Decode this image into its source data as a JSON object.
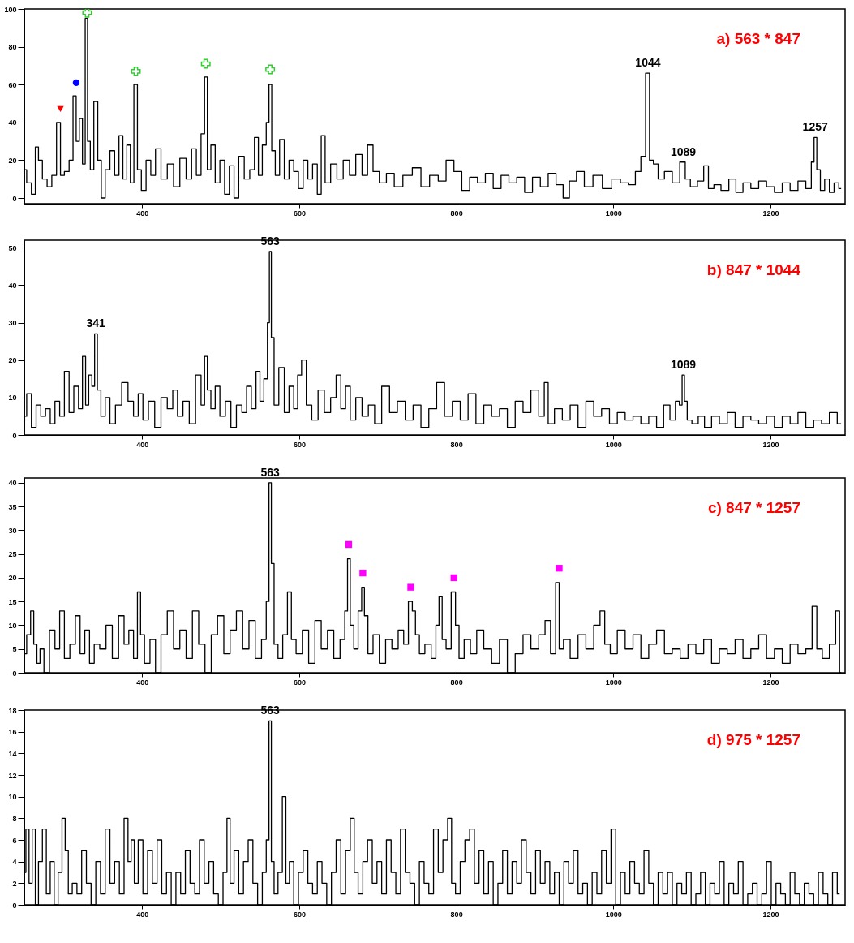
{
  "chart_data": [
    {
      "type": "step",
      "title": "a) 563 * 847",
      "xlim": [
        250,
        1295
      ],
      "xticks": [
        400,
        600,
        800,
        1000,
        1200
      ],
      "ylim": [
        -3,
        100
      ],
      "yticks": [
        0,
        20,
        40,
        60,
        80,
        100
      ],
      "grid": false,
      "annotations": [
        {
          "text": "1044",
          "x": 1044,
          "y": 66
        },
        {
          "text": "1089",
          "x": 1089,
          "y": 19
        },
        {
          "text": "1257",
          "x": 1257,
          "y": 32
        }
      ],
      "series": [
        {
          "color": "#000000",
          "x": [
            250,
            256,
            262,
            266,
            270,
            276,
            282,
            288,
            294,
            298,
            304,
            310,
            314,
            318,
            322,
            326,
            329,
            332,
            336,
            341,
            346,
            350,
            356,
            362,
            368,
            373,
            378,
            383,
            387,
            392,
            396,
            402,
            408,
            414,
            420,
            428,
            436,
            444,
            452,
            460,
            466,
            472,
            478,
            481,
            485,
            490,
            496,
            502,
            508,
            514,
            520,
            526,
            534,
            540,
            546,
            550,
            556,
            560,
            563,
            567,
            572,
            578,
            584,
            590,
            596,
            602,
            608,
            614,
            620,
            626,
            630,
            636,
            644,
            652,
            660,
            668,
            676,
            684,
            690,
            698,
            706,
            716,
            726,
            738,
            750,
            760,
            772,
            782,
            792,
            802,
            812,
            822,
            832,
            842,
            852,
            862,
            872,
            882,
            892,
            902,
            912,
            922,
            932,
            940,
            948,
            958,
            968,
            980,
            992,
            1004,
            1014,
            1024,
            1032,
            1038,
            1044,
            1048,
            1054,
            1060,
            1070,
            1080,
            1089,
            1094,
            1102,
            1112,
            1118,
            1124,
            1132,
            1142,
            1152,
            1160,
            1170,
            1180,
            1190,
            1200,
            1210,
            1220,
            1230,
            1240,
            1250,
            1254,
            1257,
            1261,
            1266,
            1272,
            1278,
            1284,
            1290
          ],
          "values": [
            15,
            8,
            2,
            27,
            20,
            10,
            6,
            12,
            40,
            12,
            14,
            20,
            54,
            30,
            42,
            18,
            95,
            30,
            15,
            51,
            20,
            0,
            15,
            25,
            12,
            33,
            10,
            28,
            8,
            60,
            15,
            4,
            20,
            12,
            26,
            10,
            18,
            6,
            21,
            10,
            26,
            12,
            34,
            64,
            15,
            28,
            8,
            20,
            2,
            17,
            0,
            22,
            10,
            15,
            32,
            12,
            28,
            40,
            60,
            25,
            12,
            31,
            10,
            20,
            14,
            5,
            20,
            10,
            18,
            2,
            33,
            8,
            18,
            10,
            20,
            12,
            23,
            12,
            28,
            14,
            8,
            13,
            6,
            12,
            16,
            6,
            12,
            9,
            20,
            14,
            4,
            11,
            8,
            13,
            5,
            12,
            8,
            11,
            3,
            11,
            6,
            13,
            7,
            0,
            9,
            14,
            6,
            12,
            5,
            10,
            8,
            7,
            14,
            22,
            66,
            20,
            18,
            10,
            14,
            8,
            19,
            10,
            6,
            9,
            17,
            5,
            7,
            4,
            10,
            3,
            8,
            5,
            9,
            6,
            3,
            8,
            4,
            9,
            5,
            19,
            32,
            15,
            4,
            10,
            3,
            8,
            5
          ]
        },
        {
          "type": "scatter",
          "color": "#ff0000",
          "marker": "triangle",
          "x": [
            296
          ],
          "values": [
            47
          ]
        },
        {
          "type": "scatter",
          "color": "#0000ff",
          "marker": "circle",
          "x": [
            316
          ],
          "values": [
            61
          ]
        },
        {
          "type": "scatter",
          "color": "#33cc33",
          "marker": "cross",
          "x": [
            330,
            392,
            481,
            563
          ],
          "values": [
            98,
            67,
            71,
            68
          ]
        }
      ]
    },
    {
      "type": "step",
      "title": "b) 847 * 1044",
      "xlim": [
        250,
        1295
      ],
      "xticks": [
        400,
        600,
        800,
        1000,
        1200
      ],
      "ylim": [
        0,
        52
      ],
      "yticks": [
        0,
        10,
        20,
        30,
        40,
        50
      ],
      "grid": false,
      "annotations": [
        {
          "text": "341",
          "x": 341,
          "y": 27
        },
        {
          "text": "563",
          "x": 563,
          "y": 49
        },
        {
          "text": "1089",
          "x": 1089,
          "y": 16
        }
      ],
      "series": [
        {
          "color": "#000000",
          "x": [
            250,
            256,
            262,
            268,
            274,
            280,
            286,
            292,
            298,
            304,
            310,
            316,
            322,
            326,
            330,
            334,
            338,
            341,
            345,
            350,
            356,
            362,
            370,
            378,
            386,
            392,
            398,
            404,
            412,
            420,
            428,
            436,
            442,
            448,
            456,
            464,
            472,
            478,
            481,
            485,
            490,
            496,
            502,
            510,
            516,
            524,
            530,
            536,
            542,
            548,
            552,
            558,
            561,
            563,
            566,
            570,
            578,
            584,
            590,
            596,
            600,
            606,
            612,
            620,
            628,
            636,
            644,
            650,
            656,
            662,
            668,
            676,
            684,
            692,
            700,
            710,
            720,
            730,
            740,
            750,
            760,
            770,
            780,
            790,
            800,
            810,
            820,
            830,
            840,
            850,
            860,
            870,
            880,
            890,
            900,
            910,
            914,
            920,
            930,
            940,
            950,
            960,
            970,
            980,
            990,
            1000,
            1010,
            1020,
            1030,
            1040,
            1050,
            1060,
            1068,
            1076,
            1082,
            1086,
            1089,
            1092,
            1096,
            1104,
            1112,
            1120,
            1130,
            1140,
            1150,
            1160,
            1170,
            1180,
            1190,
            1200,
            1210,
            1220,
            1230,
            1240,
            1250,
            1260,
            1270,
            1280,
            1290
          ],
          "values": [
            5,
            11,
            2,
            8,
            5,
            7,
            3,
            9,
            5,
            17,
            6,
            13,
            7,
            21,
            8,
            16,
            13,
            27,
            12,
            5,
            10,
            3,
            8,
            14,
            9,
            5,
            11,
            4,
            9,
            2,
            10,
            7,
            12,
            5,
            9,
            3,
            16,
            8,
            21,
            12,
            7,
            13,
            5,
            9,
            2,
            8,
            6,
            13,
            7,
            17,
            9,
            15,
            30,
            49,
            26,
            8,
            18,
            6,
            13,
            7,
            16,
            20,
            8,
            4,
            12,
            6,
            10,
            16,
            7,
            13,
            4,
            10,
            5,
            8,
            3,
            13,
            6,
            9,
            4,
            8,
            2,
            7,
            14,
            5,
            9,
            4,
            11,
            3,
            8,
            5,
            7,
            2,
            9,
            6,
            12,
            5,
            14,
            3,
            7,
            4,
            8,
            2,
            9,
            5,
            7,
            3,
            6,
            4,
            5,
            3,
            5,
            2,
            8,
            4,
            9,
            8,
            16,
            9,
            4,
            3,
            5,
            2,
            5,
            3,
            6,
            2,
            5,
            4,
            3,
            5,
            2,
            5,
            3,
            6,
            2,
            4,
            3,
            6,
            3
          ]
        }
      ]
    },
    {
      "type": "step",
      "title": "c) 847 * 1257",
      "xlim": [
        250,
        1295
      ],
      "xticks": [
        400,
        600,
        800,
        1000,
        1200
      ],
      "ylim": [
        0,
        41
      ],
      "yticks": [
        0,
        5,
        10,
        15,
        20,
        25,
        30,
        35,
        40
      ],
      "grid": false,
      "annotations": [
        {
          "text": "563",
          "x": 563,
          "y": 40
        }
      ],
      "series": [
        {
          "color": "#000000",
          "x": [
            250,
            256,
            260,
            264,
            268,
            272,
            278,
            286,
            292,
            298,
            304,
            312,
            318,
            324,
            330,
            336,
            342,
            350,
            358,
            366,
            374,
            380,
            386,
            392,
            396,
            400,
            406,
            414,
            420,
            428,
            436,
            444,
            452,
            460,
            468,
            476,
            484,
            492,
            500,
            508,
            516,
            524,
            532,
            540,
            548,
            556,
            560,
            563,
            566,
            570,
            576,
            582,
            588,
            592,
            600,
            608,
            616,
            624,
            632,
            640,
            648,
            656,
            660,
            663,
            667,
            672,
            678,
            681,
            685,
            690,
            698,
            706,
            714,
            722,
            730,
            736,
            742,
            746,
            750,
            756,
            764,
            772,
            776,
            780,
            784,
            790,
            797,
            801,
            806,
            814,
            822,
            830,
            840,
            850,
            860,
            870,
            880,
            890,
            900,
            910,
            916,
            924,
            929,
            933,
            940,
            950,
            960,
            970,
            980,
            986,
            992,
            1000,
            1010,
            1020,
            1030,
            1040,
            1050,
            1060,
            1070,
            1080,
            1090,
            1100,
            1110,
            1120,
            1130,
            1140,
            1150,
            1160,
            1170,
            1180,
            1190,
            1200,
            1210,
            1220,
            1230,
            1240,
            1250,
            1256,
            1262,
            1270,
            1280,
            1286,
            1290
          ],
          "values": [
            4,
            8,
            13,
            6,
            2,
            5,
            0,
            9,
            5,
            13,
            3,
            6,
            12,
            4,
            9,
            2,
            6,
            5,
            10,
            3,
            12,
            6,
            9,
            3,
            17,
            8,
            2,
            7,
            0,
            8,
            13,
            5,
            9,
            3,
            13,
            6,
            0,
            8,
            12,
            4,
            9,
            13,
            5,
            11,
            3,
            7,
            15,
            40,
            23,
            6,
            3,
            8,
            17,
            7,
            4,
            9,
            2,
            11,
            5,
            9,
            3,
            7,
            13,
            24,
            10,
            5,
            13,
            18,
            12,
            4,
            8,
            2,
            7,
            5,
            9,
            6,
            15,
            13,
            8,
            4,
            6,
            3,
            10,
            16,
            7,
            5,
            17,
            10,
            3,
            7,
            4,
            9,
            5,
            2,
            7,
            0,
            4,
            8,
            5,
            8,
            11,
            4,
            19,
            5,
            7,
            3,
            8,
            5,
            10,
            13,
            6,
            4,
            9,
            5,
            8,
            3,
            6,
            9,
            4,
            5,
            3,
            6,
            4,
            7,
            2,
            5,
            4,
            7,
            3,
            5,
            8,
            3,
            5,
            2,
            6,
            4,
            5,
            14,
            5,
            3,
            6,
            13,
            0
          ]
        },
        {
          "type": "scatter",
          "color": "#ff00ff",
          "marker": "square",
          "x": [
            663,
            681,
            742,
            797,
            931
          ],
          "values": [
            27,
            21,
            18,
            20,
            22
          ]
        }
      ]
    },
    {
      "type": "step",
      "title": "d) 975 * 1257",
      "xlim": [
        250,
        1295
      ],
      "xticks": [
        400,
        600,
        800,
        1000,
        1200
      ],
      "ylim": [
        0,
        18
      ],
      "yticks": [
        0,
        2,
        4,
        6,
        8,
        10,
        12,
        14,
        16,
        18
      ],
      "grid": false,
      "annotations": [
        {
          "text": "563",
          "x": 563,
          "y": 17
        }
      ],
      "series": [
        {
          "color": "#000000",
          "x": [
            250,
            254,
            258,
            262,
            266,
            270,
            276,
            280,
            286,
            290,
            296,
            300,
            304,
            308,
            314,
            320,
            326,
            332,
            338,
            344,
            350,
            356,
            362,
            368,
            374,
            380,
            384,
            388,
            392,
            398,
            404,
            410,
            416,
            422,
            428,
            434,
            440,
            446,
            452,
            458,
            464,
            470,
            476,
            482,
            488,
            494,
            500,
            506,
            510,
            514,
            520,
            526,
            532,
            538,
            544,
            550,
            556,
            560,
            563,
            566,
            570,
            576,
            581,
            585,
            590,
            596,
            602,
            608,
            614,
            620,
            626,
            632,
            638,
            644,
            650,
            656,
            662,
            668,
            672,
            678,
            684,
            690,
            696,
            702,
            708,
            714,
            720,
            726,
            732,
            738,
            744,
            750,
            756,
            762,
            768,
            774,
            780,
            786,
            792,
            796,
            802,
            808,
            814,
            820,
            826,
            832,
            838,
            844,
            850,
            856,
            862,
            868,
            874,
            880,
            886,
            892,
            898,
            904,
            910,
            916,
            922,
            928,
            934,
            940,
            946,
            952,
            958,
            964,
            970,
            976,
            982,
            988,
            994,
            1000,
            1006,
            1012,
            1018,
            1024,
            1030,
            1036,
            1042,
            1048,
            1054,
            1060,
            1066,
            1072,
            1078,
            1084,
            1090,
            1096,
            1102,
            1108,
            1114,
            1120,
            1126,
            1132,
            1138,
            1144,
            1150,
            1156,
            1162,
            1168,
            1174,
            1180,
            1186,
            1192,
            1198,
            1204,
            1210,
            1216,
            1222,
            1228,
            1234,
            1240,
            1246,
            1252,
            1258,
            1264,
            1270,
            1276,
            1282,
            1288
          ],
          "values": [
            3,
            7,
            2,
            7,
            0,
            4,
            7,
            1,
            4,
            0,
            3,
            8,
            5,
            1,
            2,
            1,
            5,
            2,
            0,
            4,
            1,
            7,
            2,
            4,
            1,
            8,
            4,
            6,
            2,
            6,
            1,
            5,
            2,
            6,
            1,
            3,
            0,
            3,
            1,
            5,
            2,
            1,
            6,
            2,
            4,
            1,
            0,
            3,
            8,
            2,
            5,
            1,
            4,
            6,
            2,
            0,
            3,
            6,
            17,
            4,
            1,
            3,
            10,
            2,
            4,
            0,
            3,
            5,
            2,
            1,
            4,
            2,
            0,
            3,
            6,
            1,
            5,
            8,
            3,
            1,
            4,
            6,
            2,
            4,
            1,
            6,
            3,
            1,
            7,
            3,
            2,
            0,
            4,
            2,
            1,
            7,
            3,
            6,
            8,
            2,
            1,
            4,
            6,
            7,
            2,
            5,
            1,
            4,
            0,
            2,
            5,
            1,
            4,
            2,
            6,
            3,
            1,
            5,
            2,
            4,
            1,
            3,
            0,
            4,
            2,
            5,
            1,
            2,
            0,
            3,
            1,
            5,
            2,
            7,
            0,
            3,
            1,
            4,
            2,
            1,
            5,
            2,
            0,
            3,
            1,
            3,
            0,
            2,
            1,
            3,
            0,
            1,
            3,
            0,
            2,
            1,
            4,
            0,
            2,
            1,
            4,
            0,
            1,
            2,
            0,
            1,
            4,
            0,
            2,
            1,
            0,
            3,
            1,
            0,
            2,
            1,
            0,
            3,
            1,
            0,
            3,
            1
          ]
        }
      ]
    }
  ]
}
